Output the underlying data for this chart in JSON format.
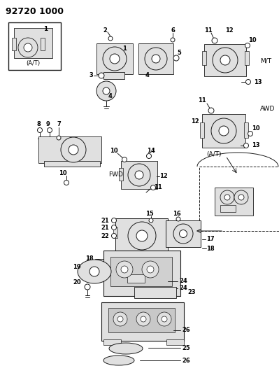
{
  "title": "92720 1000",
  "bg_color": "#ffffff",
  "fig_width": 3.99,
  "fig_height": 5.33,
  "dpi": 100,
  "line_color": "#1a1a1a",
  "labels": {
    "AT_box": "(A/T)",
    "MT": "M/T",
    "AWD": "AWD",
    "FWD": "FWD",
    "AT2": "(A/T)"
  }
}
